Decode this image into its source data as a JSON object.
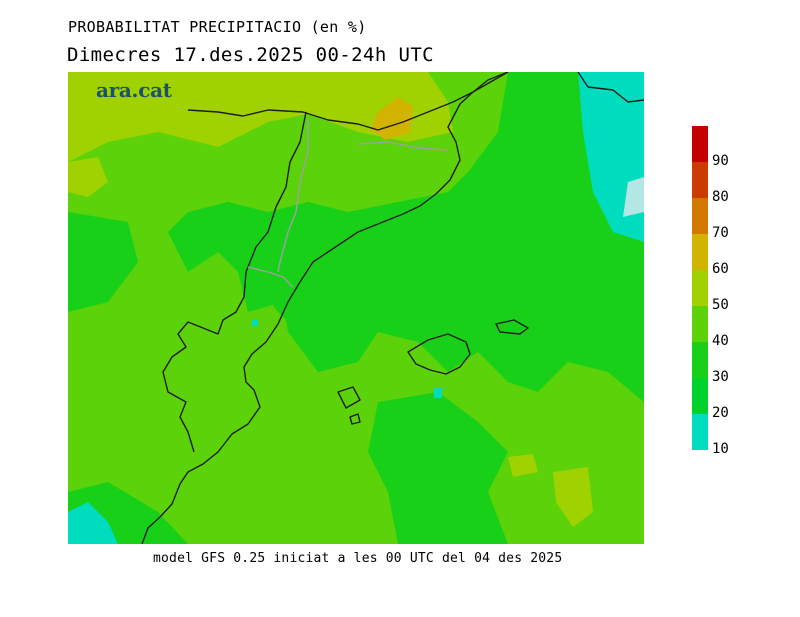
{
  "header": {
    "line1": "PROBABILITAT PRECIPITACIO (en %)",
    "line2": "Dimecres  17.des.2025 00-24h UTC"
  },
  "logo": "ara.cat",
  "footer": "model GFS 0.25 iniciat a les 00 UTC del 04 des 2025",
  "legend": {
    "bins": [
      {
        "color": "#00dcbe"
      },
      {
        "color": "#00d22d"
      },
      {
        "color": "#18d018"
      },
      {
        "color": "#5bd20a"
      },
      {
        "color": "#9fd200"
      },
      {
        "color": "#d2b400"
      },
      {
        "color": "#d27800"
      },
      {
        "color": "#cc3c00"
      },
      {
        "color": "#c40000"
      }
    ],
    "labels": [
      "10",
      "20",
      "30",
      "40",
      "50",
      "60",
      "70",
      "80",
      "90"
    ]
  }
}
